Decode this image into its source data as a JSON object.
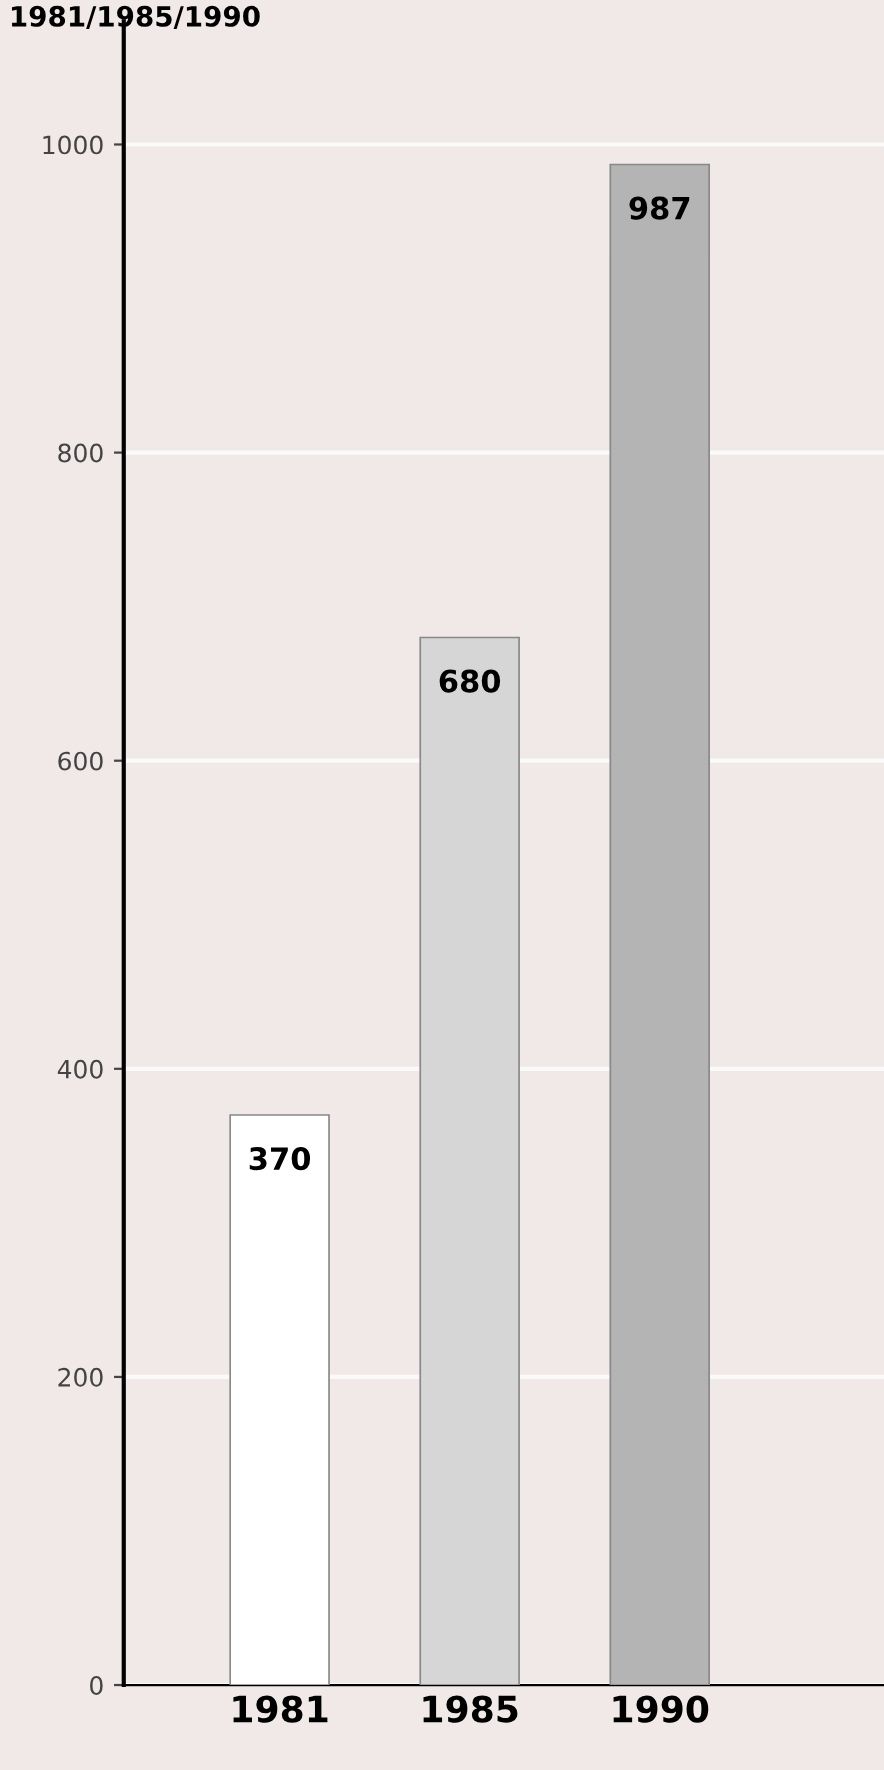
{
  "chart_data": {
    "type": "bar",
    "title": "1981/1985/1990",
    "categories": [
      "1981",
      "1985",
      "1990"
    ],
    "values": [
      370,
      680,
      987
    ],
    "colors": [
      "#ffffff",
      "#d6d6d6",
      "#b4b4b4"
    ],
    "ylim": [
      0,
      1080
    ],
    "yticks": [
      0,
      200,
      400,
      600,
      800,
      1000
    ],
    "data_labels": true,
    "grid": "y"
  }
}
